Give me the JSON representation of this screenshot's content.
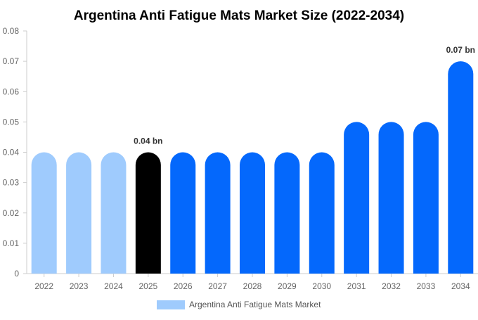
{
  "chart_data": {
    "type": "bar",
    "title": "Argentina Anti Fatigue Mats Market Size (2022-2034)",
    "xlabel": "",
    "ylabel": "",
    "ylim": [
      0,
      0.08
    ],
    "yticks": [
      "0",
      "0.01",
      "0.02",
      "0.03",
      "0.04",
      "0.05",
      "0.06",
      "0.07",
      "0.08"
    ],
    "categories": [
      "2022",
      "2023",
      "2024",
      "2025",
      "2026",
      "2027",
      "2028",
      "2029",
      "2030",
      "2031",
      "2032",
      "2033",
      "2034"
    ],
    "series": [
      {
        "name": "Argentina Anti Fatigue Mats Market",
        "values": [
          0.04,
          0.04,
          0.04,
          0.04,
          0.04,
          0.04,
          0.04,
          0.04,
          0.04,
          0.05,
          0.05,
          0.05,
          0.07
        ]
      }
    ],
    "bar_colors": [
      "#9fcbfd",
      "#9fcbfd",
      "#9fcbfd",
      "#000000",
      "#0468fc",
      "#0468fc",
      "#0468fc",
      "#0468fc",
      "#0468fc",
      "#0468fc",
      "#0468fc",
      "#0468fc",
      "#0468fc"
    ],
    "data_labels": [
      {
        "index": 3,
        "text": "0.04 bn"
      },
      {
        "index": 12,
        "text": "0.07 bn"
      }
    ],
    "legend": {
      "position": "bottom",
      "label": "Argentina Anti Fatigue Mats Market",
      "color": "#9fcbfd"
    },
    "grid": false
  }
}
